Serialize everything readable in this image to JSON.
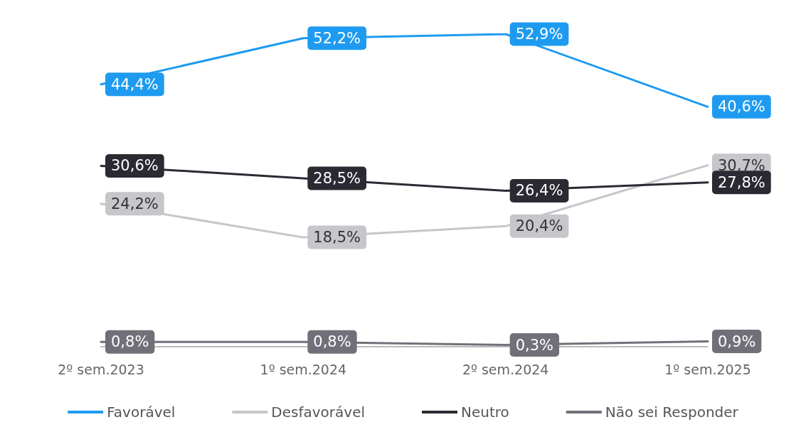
{
  "chart_data": {
    "type": "line",
    "categories": [
      "2º sem.2023",
      "1º sem.2024",
      "2º sem.2024",
      "1º sem.2025"
    ],
    "series": [
      {
        "name": "Favorável",
        "color": "#1e9bf0",
        "values": [
          44.4,
          52.2,
          52.9,
          40.6
        ],
        "value_labels": [
          "44,4%",
          "52,2%",
          "52,9%",
          "40,6%"
        ]
      },
      {
        "name": "Desfavorável",
        "color": "#c6c6cb",
        "values": [
          24.2,
          18.5,
          20.4,
          30.7
        ],
        "value_labels": [
          "24,2%",
          "18,5%",
          "20,4%",
          "30,7%"
        ]
      },
      {
        "name": "Neutro",
        "color": "#2a2a33",
        "values": [
          30.6,
          28.5,
          26.4,
          27.8
        ],
        "value_labels": [
          "30,6%",
          "28,5%",
          "26,4%",
          "27,8%"
        ]
      },
      {
        "name": "Não sei Responder",
        "color": "#707079",
        "values": [
          0.8,
          0.8,
          0.3,
          0.9
        ],
        "value_labels": [
          "0,8%",
          "0,8%",
          "0,3%",
          "0,9%"
        ]
      }
    ],
    "legend": "bottom",
    "marker": "none",
    "line_style": "solid",
    "grid": false
  }
}
